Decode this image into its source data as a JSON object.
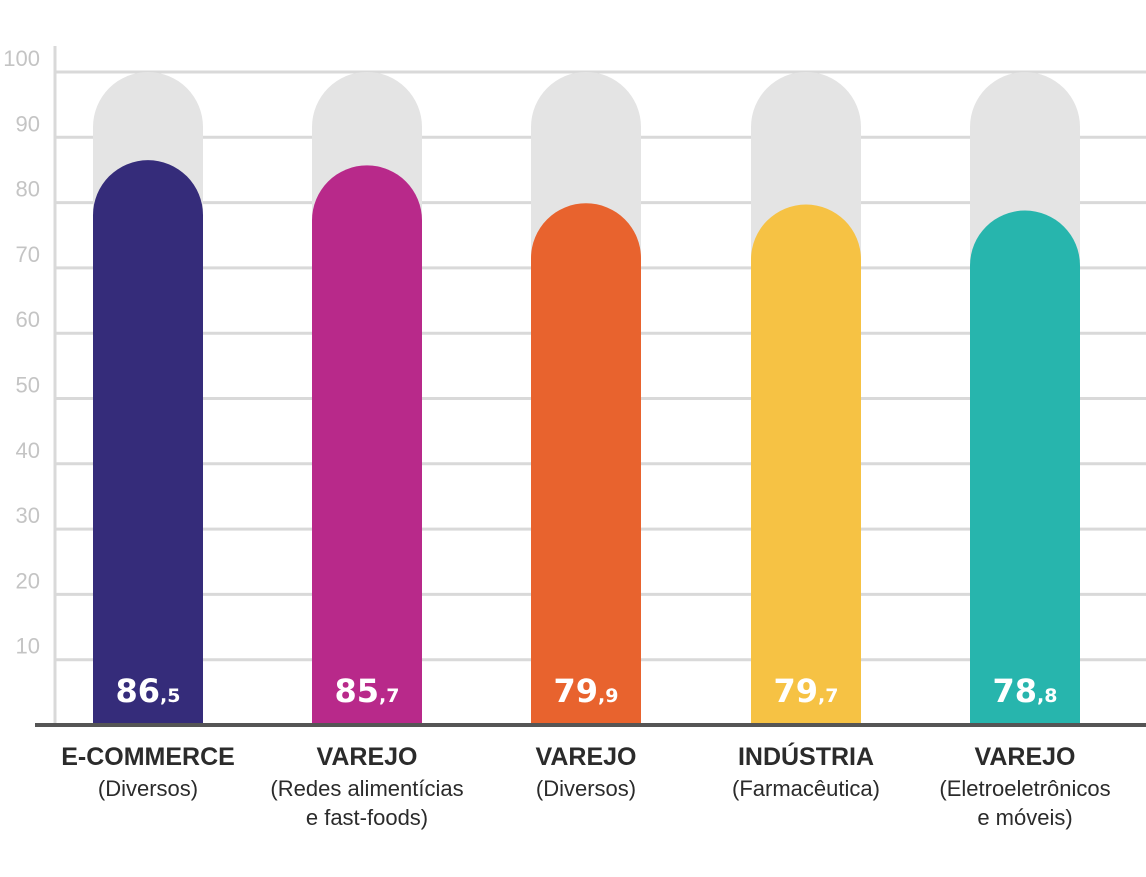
{
  "chart_data": {
    "type": "bar",
    "ylim": [
      0,
      100
    ],
    "yticks": [
      10,
      20,
      30,
      40,
      50,
      60,
      70,
      80,
      90,
      100
    ],
    "grid": true,
    "legend": "none",
    "categories": [
      {
        "label": "E-COMMERCE",
        "sublabel": [
          "(Diversos)"
        ]
      },
      {
        "label": "VAREJO",
        "sublabel": [
          "(Redes alimentícias",
          "e fast-foods)"
        ]
      },
      {
        "label": "VAREJO",
        "sublabel": [
          "(Diversos)"
        ]
      },
      {
        "label": "INDÚSTRIA",
        "sublabel": [
          "(Farmacêutica)"
        ]
      },
      {
        "label": "VAREJO",
        "sublabel": [
          "(Eletroeletrônicos",
          "e móveis)"
        ]
      }
    ],
    "values": [
      86.5,
      85.7,
      79.9,
      79.7,
      78.8
    ],
    "value_labels": [
      {
        "int": "86",
        "dec": ",5"
      },
      {
        "int": "85",
        "dec": ",7"
      },
      {
        "int": "79",
        "dec": ",9"
      },
      {
        "int": "79",
        "dec": ",7"
      },
      {
        "int": "78",
        "dec": ",8"
      }
    ],
    "colors": [
      "#352c7a",
      "#b8298a",
      "#e8632e",
      "#f6c244",
      "#27b5ad"
    ],
    "track_color": "#e4e4e4",
    "grid_color": "#d9d9d9",
    "axis_color": "#555555"
  }
}
